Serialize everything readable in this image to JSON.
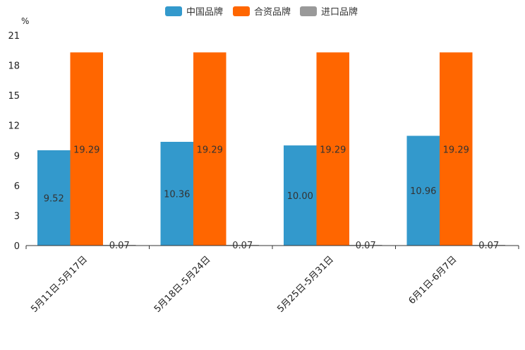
{
  "chart_data": {
    "type": "bar",
    "unit_label": "%",
    "categories": [
      "5月11日-5月17日",
      "5月18日-5月24日",
      "5月25日-5月31日",
      "6月1日-6月7日"
    ],
    "series": [
      {
        "name": "中国品牌",
        "color": "#3399cc",
        "values": [
          9.52,
          10.36,
          10.0,
          10.96
        ],
        "labels": [
          "9.52",
          "10.36",
          "10.00",
          "10.96"
        ]
      },
      {
        "name": "合资品牌",
        "color": "#ff6600",
        "values": [
          19.29,
          19.29,
          19.29,
          19.29
        ],
        "labels": [
          "19.29",
          "19.29",
          "19.29",
          "19.29"
        ]
      },
      {
        "name": "进口品牌",
        "color": "#999999",
        "values": [
          0.07,
          0.07,
          0.07,
          0.07
        ],
        "labels": [
          "0.07",
          "0.07",
          "0.07",
          "0.07"
        ]
      }
    ],
    "yticks": [
      0,
      3,
      6,
      9,
      12,
      15,
      18,
      21
    ],
    "ylim": [
      0,
      21
    ],
    "legend_position": "top-center",
    "grid": false
  }
}
